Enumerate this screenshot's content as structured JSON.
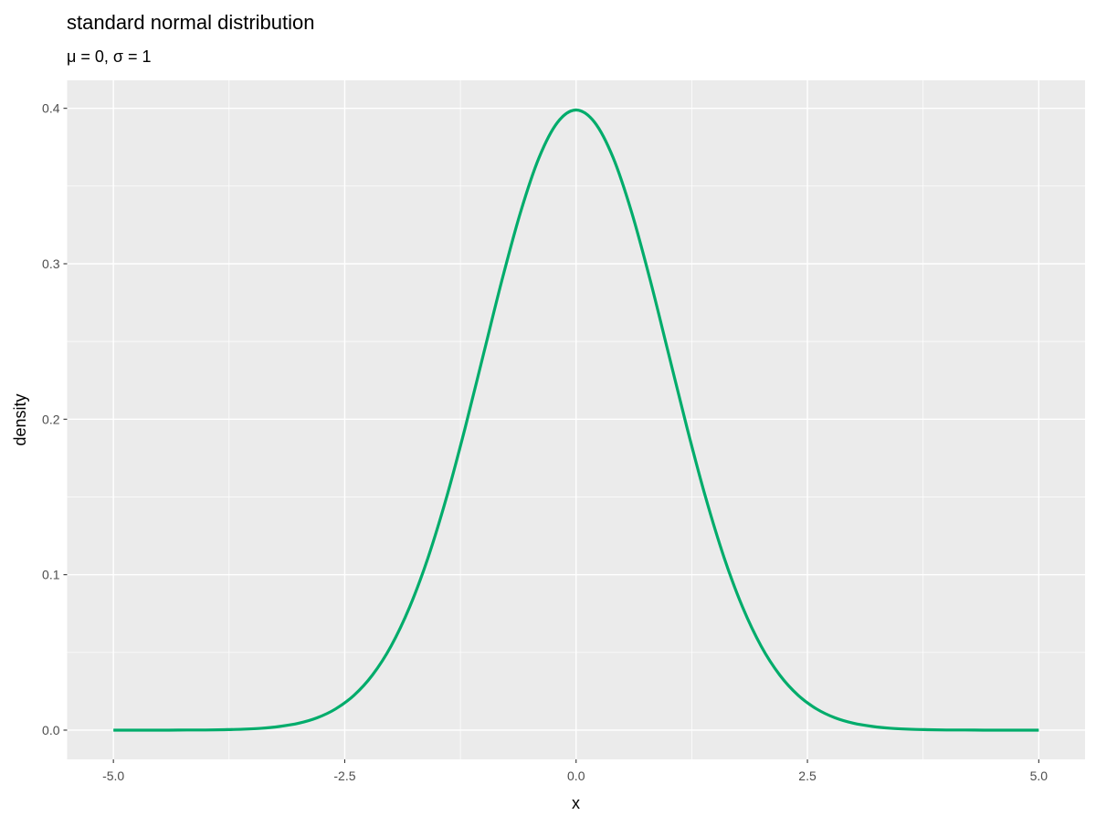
{
  "chart_data": {
    "type": "line",
    "title": "standard normal distribution",
    "subtitle": "μ = 0, σ = 1",
    "xlabel": "x",
    "ylabel": "density",
    "xlim": [
      -5.5,
      5.5
    ],
    "ylim": [
      -0.0188,
      0.418
    ],
    "x_ticks": [
      -5,
      -2.5,
      0,
      2.5,
      5
    ],
    "x_tick_labels": [
      "-5.0",
      "-2.5",
      "0.0",
      "2.5",
      "5.0"
    ],
    "y_ticks": [
      0,
      0.1,
      0.2,
      0.3,
      0.4
    ],
    "y_tick_labels": [
      "0.0",
      "0.1",
      "0.2",
      "0.3",
      "0.4"
    ],
    "grid": true,
    "line_color": "#00AC6B",
    "panel_background": "#EBEBEB",
    "series": [
      {
        "x": [
          -5,
          -4.8,
          -4.6,
          -4.4,
          -4.2,
          -4,
          -3.8,
          -3.6,
          -3.4,
          -3.2,
          -3,
          -2.8,
          -2.6,
          -2.4,
          -2.2,
          -2,
          -1.8,
          -1.6,
          -1.4,
          -1.2,
          -1,
          -0.8,
          -0.6,
          -0.4,
          -0.2,
          0,
          0.2,
          0.4,
          0.6,
          0.8,
          1,
          1.2,
          1.4,
          1.6,
          1.8,
          2,
          2.2,
          2.4,
          2.6,
          2.8,
          3,
          3.2,
          3.4,
          3.6,
          3.8,
          4,
          4.2,
          4.4,
          4.6,
          4.8,
          5
        ],
        "y": [
          0.0,
          0.0,
          0.0,
          0.0,
          0.0001,
          0.0001,
          0.0003,
          0.0006,
          0.0012,
          0.0024,
          0.0044,
          0.0079,
          0.0136,
          0.0224,
          0.0355,
          0.054,
          0.079,
          0.1109,
          0.1497,
          0.1942,
          0.242,
          0.2897,
          0.3332,
          0.3683,
          0.391,
          0.3989,
          0.391,
          0.3683,
          0.3332,
          0.2897,
          0.242,
          0.1942,
          0.1497,
          0.1109,
          0.079,
          0.054,
          0.0355,
          0.0224,
          0.0136,
          0.0079,
          0.0044,
          0.0024,
          0.0012,
          0.0006,
          0.0003,
          0.0001,
          0.0001,
          0.0,
          0.0,
          0.0,
          0.0
        ]
      }
    ]
  }
}
